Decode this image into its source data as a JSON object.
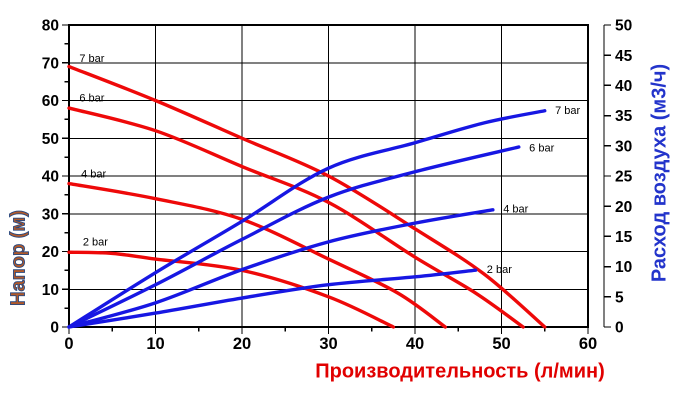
{
  "chart_data": {
    "type": "line",
    "title": "",
    "xlabel": "Производительность (л/мин)",
    "ylabel_left": "Напор (м)",
    "ylabel_right": "Расход воздуха (м3/ч)",
    "x_axis": {
      "min": 0,
      "max": 60,
      "major_step": 10,
      "minor_step": 5
    },
    "y_axis_left": {
      "min": 0,
      "max": 80,
      "major_step": 10,
      "minor_step": 5
    },
    "y_axis_right": {
      "min": 0,
      "max": 50,
      "major_step": 5
    },
    "grid": true,
    "legend_position": "none",
    "series": [
      {
        "id": "head-7bar",
        "label": "7 bar",
        "axis": "left",
        "color": "#ee0909",
        "points": [
          [
            0,
            69
          ],
          [
            10,
            60
          ],
          [
            20,
            50
          ],
          [
            30,
            40
          ],
          [
            40,
            26
          ],
          [
            48,
            14
          ],
          [
            55,
            0
          ]
        ],
        "label_at": [
          1.2,
          71.3
        ],
        "label_anchor": "start"
      },
      {
        "id": "head-6bar",
        "label": "6 bar",
        "axis": "left",
        "color": "#ee0909",
        "points": [
          [
            0,
            58
          ],
          [
            10,
            52
          ],
          [
            20,
            42.5
          ],
          [
            30,
            33
          ],
          [
            40,
            18.5
          ],
          [
            47,
            9
          ],
          [
            52.5,
            0
          ]
        ],
        "label_at": [
          1.2,
          60.8
        ],
        "label_anchor": "start"
      },
      {
        "id": "head-4bar",
        "label": "4 bar",
        "axis": "left",
        "color": "#ee0909",
        "points": [
          [
            0,
            38
          ],
          [
            10,
            34
          ],
          [
            20,
            28.5
          ],
          [
            30,
            18
          ],
          [
            38,
            9
          ],
          [
            43.5,
            0
          ]
        ],
        "label_at": [
          1.4,
          40.6
        ],
        "label_anchor": "start"
      },
      {
        "id": "head-2bar",
        "label": "2 bar",
        "axis": "left",
        "color": "#ee0909",
        "points": [
          [
            0,
            19.8
          ],
          [
            5,
            19.5
          ],
          [
            10,
            18
          ],
          [
            20,
            15
          ],
          [
            30,
            8
          ],
          [
            37.5,
            0
          ]
        ],
        "label_at": [
          1.6,
          22.6
        ],
        "label_anchor": "start"
      },
      {
        "id": "air-7bar",
        "label": "7 bar",
        "axis": "right",
        "color": "#1717e3",
        "points": [
          [
            0,
            0
          ],
          [
            10,
            9
          ],
          [
            20,
            17.5
          ],
          [
            30,
            26.3
          ],
          [
            40,
            30.5
          ],
          [
            48,
            33.8
          ],
          [
            55,
            35.8
          ]
        ],
        "label_at": [
          56.2,
          35.9
        ],
        "label_anchor": "start"
      },
      {
        "id": "air-6bar",
        "label": "6 bar",
        "axis": "right",
        "color": "#1717e3",
        "points": [
          [
            0,
            0
          ],
          [
            10,
            7
          ],
          [
            20,
            14.5
          ],
          [
            30,
            21.5
          ],
          [
            40,
            25.7
          ],
          [
            52,
            29.8
          ]
        ],
        "label_at": [
          53.2,
          29.7
        ],
        "label_anchor": "start"
      },
      {
        "id": "air-4bar",
        "label": "4 bar",
        "axis": "right",
        "color": "#1717e3",
        "points": [
          [
            0,
            0
          ],
          [
            10,
            4
          ],
          [
            20,
            9.5
          ],
          [
            30,
            14.1
          ],
          [
            40,
            17.2
          ],
          [
            49,
            19.4
          ]
        ],
        "label_at": [
          50.2,
          19.6
        ],
        "label_anchor": "start"
      },
      {
        "id": "air-2bar",
        "label": "2 bar",
        "axis": "right",
        "color": "#1717e3",
        "points": [
          [
            0,
            0
          ],
          [
            10,
            2.3
          ],
          [
            20,
            4.8
          ],
          [
            30,
            7
          ],
          [
            40,
            8.3
          ],
          [
            47,
            9.4
          ]
        ],
        "label_at": [
          48.3,
          9.6
        ],
        "label_anchor": "start"
      }
    ],
    "styles": {
      "background": "#ffffff",
      "grid_color": "#000000",
      "frame_color": "#000000",
      "tick_label_color": "#000000",
      "curve_label_color": "#000000",
      "xlabel_color": "#e10000",
      "ylabel_left_color": "#b0592a",
      "ylabel_left_outline": "#27477f",
      "ylabel_right_color": "#2334cb",
      "red_curve_color": "#ee0909",
      "blue_curve_color": "#1717e3"
    }
  }
}
